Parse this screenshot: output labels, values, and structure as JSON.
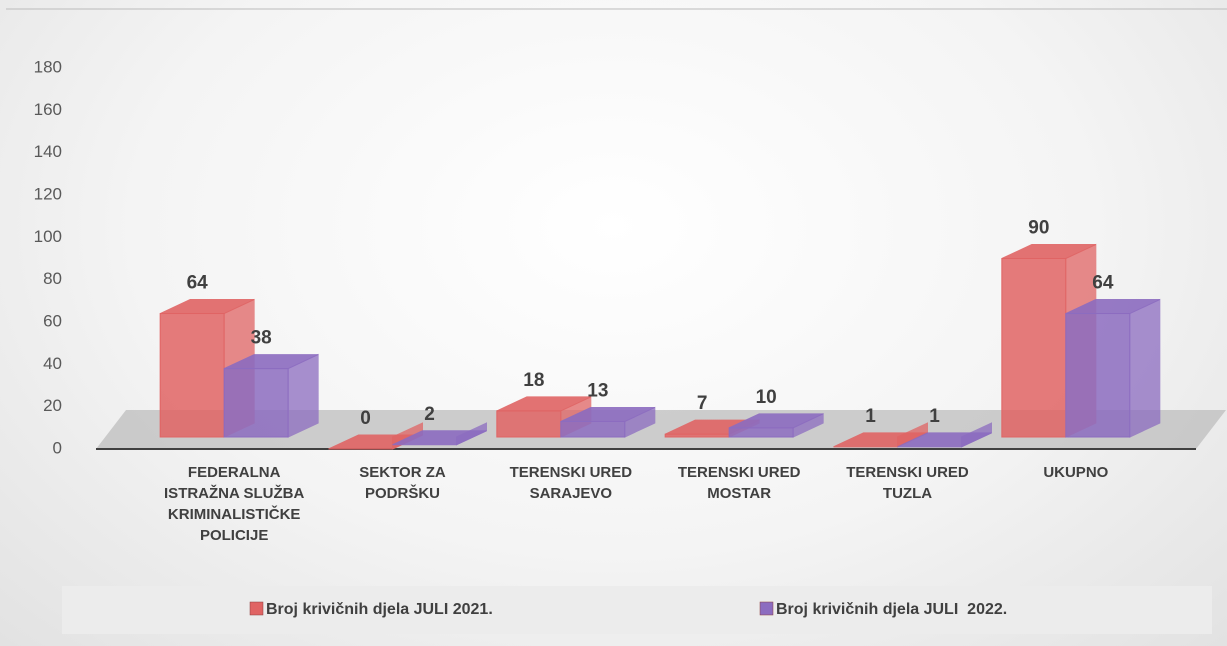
{
  "chart_data": {
    "type": "bar",
    "categories": [
      "FEDERALNA ISTRAŽNA SLUŽBA KRIMINALISTIČKE POLICIJE",
      "SEKTOR ZA PODRŠKU",
      "TERENSKI URED SARAJEVO",
      "TERENSKI URED MOSTAR",
      "TERENSKI URED TUZLA",
      "UKUPNO"
    ],
    "series": [
      {
        "name": "Broj krivičnih djela JULI 2021.",
        "color": "#e06464",
        "values": [
          64,
          0,
          18,
          7,
          1,
          90
        ]
      },
      {
        "name": "Broj krivičnih djela JULI  2022.",
        "color": "#8c6cc0",
        "values": [
          38,
          2,
          13,
          10,
          1,
          64
        ]
      }
    ],
    "ylim": [
      0,
      180
    ],
    "yticks": [
      0,
      20,
      40,
      60,
      80,
      100,
      120,
      140,
      160,
      180
    ],
    "legend": "bottom"
  }
}
